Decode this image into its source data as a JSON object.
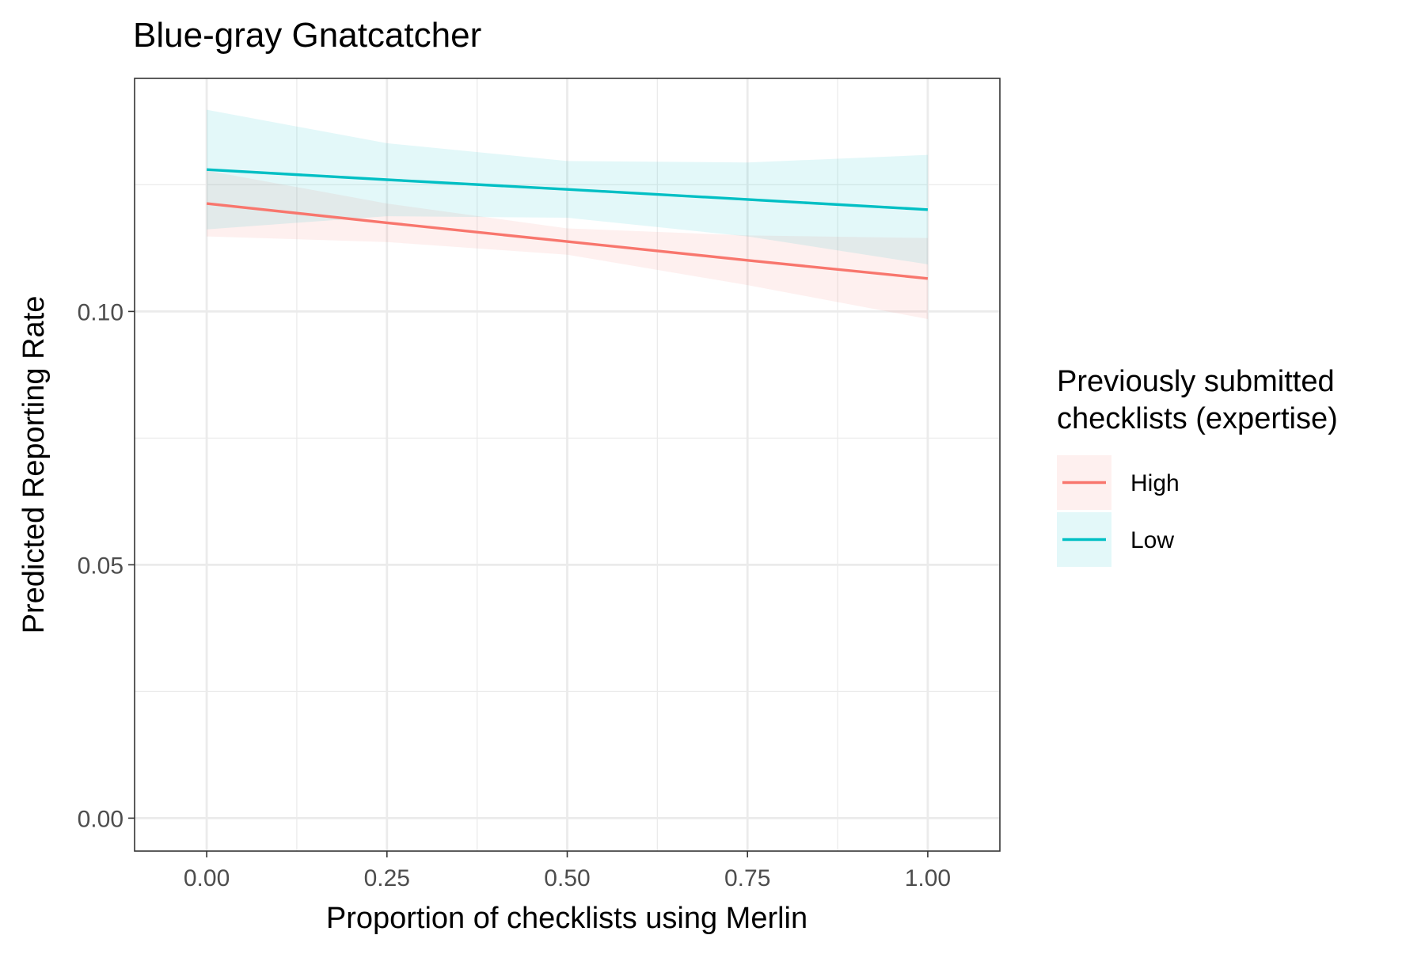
{
  "chart_data": {
    "type": "line",
    "title": "Blue-gray Gnatcatcher",
    "xlabel": "Proportion of checklists using Merlin",
    "ylabel": "Predicted Reporting Rate",
    "xlim": [
      -0.1,
      1.1
    ],
    "ylim": [
      -0.0065,
      0.146
    ],
    "x_ticks": [
      0.0,
      0.25,
      0.5,
      0.75,
      1.0
    ],
    "x_tick_labels": [
      "0.00",
      "0.25",
      "0.50",
      "0.75",
      "1.00"
    ],
    "y_ticks": [
      0.0,
      0.05,
      0.1
    ],
    "y_tick_labels": [
      "0.00",
      "0.05",
      "0.10"
    ],
    "x_minor_ticks": [
      0.125,
      0.375,
      0.625,
      0.875
    ],
    "y_minor_ticks": [
      0.025,
      0.075,
      0.125
    ],
    "grid": true,
    "legend": {
      "title": "Previously submitted\nchecklists (expertise)",
      "position": "right"
    },
    "series": [
      {
        "name": "High",
        "color": "#F8766D",
        "fill": "#F8766D",
        "x": [
          0.0,
          0.25,
          0.5,
          0.75,
          1.0
        ],
        "y": [
          0.1213,
          0.1175,
          0.1138,
          0.1101,
          0.1065
        ],
        "lower": [
          0.1148,
          0.1137,
          0.1112,
          0.1052,
          0.0985
        ],
        "upper": [
          0.1278,
          0.1213,
          0.1164,
          0.115,
          0.1145
        ]
      },
      {
        "name": "Low",
        "color": "#00BFC4",
        "fill": "#00BFC4",
        "x": [
          0.0,
          0.25,
          0.5,
          0.75,
          1.0
        ],
        "y": [
          0.128,
          0.126,
          0.1241,
          0.1221,
          0.1201
        ],
        "lower": [
          0.1162,
          0.1188,
          0.1185,
          0.1148,
          0.1093
        ],
        "upper": [
          0.1398,
          0.1332,
          0.1297,
          0.1294,
          0.1309
        ]
      }
    ]
  }
}
